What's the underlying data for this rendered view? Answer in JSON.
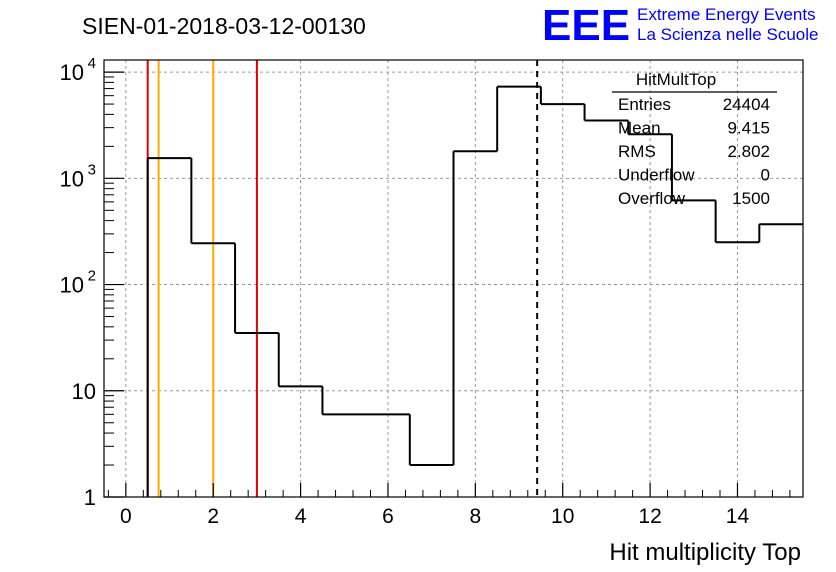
{
  "header": {
    "run_title": "SIEN-01-2018-03-12-00130",
    "logo_text": "EEE",
    "logo_line1": "Extreme Energy Events",
    "logo_line2": "La Scienza nelle Scuole",
    "logo_color": "#0000ff"
  },
  "stats": {
    "name": "HitMultTop",
    "rows": [
      {
        "label": "Entries",
        "value": "24404"
      },
      {
        "label": "Mean",
        "value": "9.415"
      },
      {
        "label": "RMS",
        "value": "2.802"
      },
      {
        "label": "Underflow",
        "value": "0"
      },
      {
        "label": "Overflow",
        "value": "1500"
      }
    ]
  },
  "chart_data": {
    "type": "histogram",
    "title": "SIEN-01-2018-03-12-00130",
    "xlabel": "Hit multiplicity Top",
    "ylabel": "",
    "xlim": [
      -0.5,
      15.5
    ],
    "ylim": [
      1,
      13000
    ],
    "yscale": "log",
    "grid": true,
    "x_ticks": [
      0,
      2,
      4,
      6,
      8,
      10,
      12,
      14
    ],
    "x_tick_labels": [
      "0",
      "2",
      "4",
      "6",
      "8",
      "10",
      "12",
      "14"
    ],
    "y_ticks": [
      1,
      10,
      100,
      1000,
      10000
    ],
    "y_tick_labels": [
      {
        "base": "1",
        "exp": ""
      },
      {
        "base": "10",
        "exp": ""
      },
      {
        "base": "10",
        "exp": "2"
      },
      {
        "base": "10",
        "exp": "3"
      },
      {
        "base": "10",
        "exp": "4"
      }
    ],
    "bin_edges": [
      0.5,
      1.5,
      2.5,
      3.5,
      4.5,
      6.5,
      7.5,
      8.5,
      9.5,
      10.5,
      11.5,
      12.5,
      13.5,
      14.5,
      15.5
    ],
    "counts": [
      1550,
      245,
      35,
      11,
      6,
      2,
      1800,
      7300,
      5000,
      3500,
      2600,
      620,
      250,
      370
    ],
    "mean_line_x": 9.415,
    "marker_lines": [
      {
        "x": 0.5,
        "color": "#e00000"
      },
      {
        "x": 0.75,
        "color": "#ffaa00"
      },
      {
        "x": 2.0,
        "color": "#ffaa00"
      },
      {
        "x": 3.0,
        "color": "#e00000"
      }
    ]
  }
}
